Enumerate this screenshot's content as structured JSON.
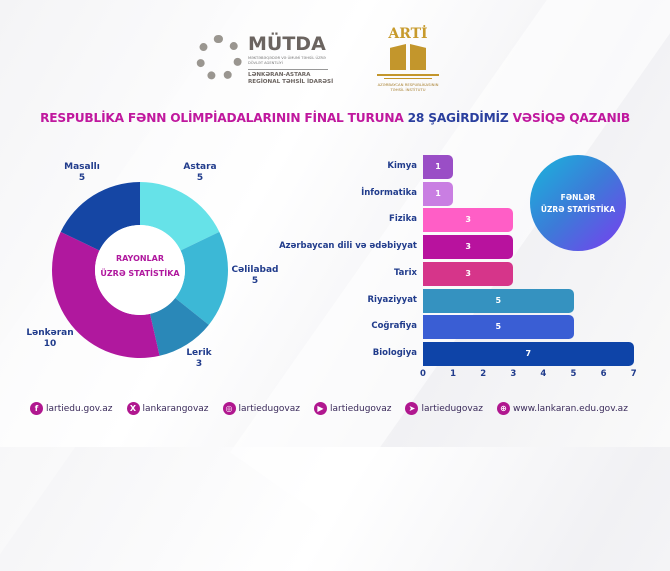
{
  "logos": {
    "mutda": {
      "name": "MÜTDA",
      "subtitle": "MƏKTƏBƏQƏDƏR VƏ ÜMUMİ TƏHSİL ÜZRƏ DÖVLƏT AGENTLİYİ",
      "region_line1": "LƏNKƏRAN-ASTARA",
      "region_line2": "REGİONAL TƏHSİL İDARƏSİ"
    },
    "arti": {
      "name": "ARTİ",
      "subtitle_line1": "AZƏRBAYCAN RESPUBLİKASININ",
      "subtitle_line2": "TƏHSİL İNSTİTUTU"
    }
  },
  "title": {
    "part1": "RESPUBLİKA FƏNN OLİMPİADALARININ FİNAL TURUNA ",
    "part2": "28 ŞAGİRDİMİZ",
    "part3": " VƏSİQƏ QAZANIB"
  },
  "chart_data": [
    {
      "type": "pie",
      "donut": true,
      "center_label_line1": "RAYONLAR",
      "center_label_line2": "ÜZRƏ STATİSTİKA",
      "categories": [
        "Astara",
        "Cəlilabad",
        "Lerik",
        "Lənkəran",
        "Masallı"
      ],
      "values": [
        5,
        5,
        3,
        10,
        5
      ],
      "colors": [
        "#66e2e8",
        "#3cb8d6",
        "#2a88b8",
        "#b0189e",
        "#1546a4"
      ]
    },
    {
      "type": "bar",
      "orientation": "horizontal",
      "badge_line1": "FƏNLƏR",
      "badge_line2": "ÜZRƏ STATİSTİKA",
      "categories": [
        "Kimya",
        "İnformatika",
        "Fizika",
        "Azərbaycan dili və ədəbiyyat",
        "Tarix",
        "Riyaziyyat",
        "Coğrafiya",
        "Biologiya"
      ],
      "values": [
        1,
        1,
        3,
        3,
        3,
        5,
        5,
        7
      ],
      "colors": [
        "#9a4ec6",
        "#c97ee2",
        "#ff5ec6",
        "#b8129e",
        "#d6358a",
        "#3592c0",
        "#3a5ed4",
        "#0e44a8"
      ],
      "xlim": [
        0,
        7
      ],
      "xticks": [
        "0",
        "1",
        "2",
        "3",
        "4",
        "5",
        "6",
        "7"
      ]
    }
  ],
  "footer": [
    {
      "icon": "facebook-icon",
      "glyph": "f",
      "text": "lartiedu.gov.az"
    },
    {
      "icon": "x-icon",
      "glyph": "X",
      "text": "lankarangovaz"
    },
    {
      "icon": "instagram-icon",
      "glyph": "◎",
      "text": "lartiedugovaz"
    },
    {
      "icon": "youtube-icon",
      "glyph": "▶",
      "text": "lartiedugovaz"
    },
    {
      "icon": "telegram-icon",
      "glyph": "➤",
      "text": "lartiedugovaz"
    },
    {
      "icon": "globe-icon",
      "glyph": "⊕",
      "text": "www.lankaran.edu.gov.az"
    }
  ]
}
